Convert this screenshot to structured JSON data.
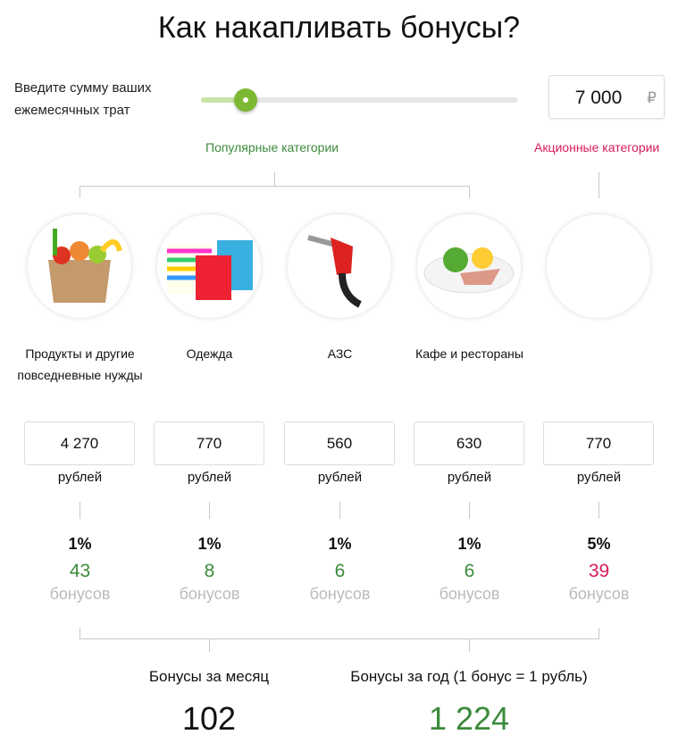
{
  "title": "Как накапливать бонусы?",
  "slider": {
    "label_line1": "Введите сумму ваших",
    "label_line2": "ежемесячных трат",
    "value": "7 000",
    "currency": "₽",
    "fill_fraction": 0.14
  },
  "groups": {
    "popular": "Популярные категории",
    "promo": "Акционные категории"
  },
  "colors": {
    "green": "#3b8a3b",
    "red": "#d81b5c",
    "slider": "#7cb832"
  },
  "categories": [
    {
      "name": "Продукты и другие повседневные нужды",
      "icon": "grocery-bag-icon",
      "amount": "4 270",
      "unit": "рублей",
      "percent": "1%",
      "bonus": "43",
      "bonus_label": "бонусов",
      "promo": false
    },
    {
      "name": "Одежда",
      "icon": "shopping-bags-icon",
      "amount": "770",
      "unit": "рублей",
      "percent": "1%",
      "bonus": "8",
      "bonus_label": "бонусов",
      "promo": false
    },
    {
      "name": "АЗС",
      "icon": "fuel-nozzle-icon",
      "amount": "560",
      "unit": "рублей",
      "percent": "1%",
      "bonus": "6",
      "bonus_label": "бонусов",
      "promo": false
    },
    {
      "name": "Кафе и рестораны",
      "icon": "food-plate-icon",
      "amount": "630",
      "unit": "рублей",
      "percent": "1%",
      "bonus": "6",
      "bonus_label": "бонусов",
      "promo": false
    },
    {
      "name": "",
      "icon": "empty-icon",
      "amount": "770",
      "unit": "рублей",
      "percent": "5%",
      "bonus": "39",
      "bonus_label": "бонусов",
      "promo": true
    }
  ],
  "totals": {
    "month_label": "Бонусы за месяц",
    "month_value": "102",
    "year_label": "Бонусы за год (1 бонус = 1 рубль)",
    "year_value": "1 224"
  }
}
